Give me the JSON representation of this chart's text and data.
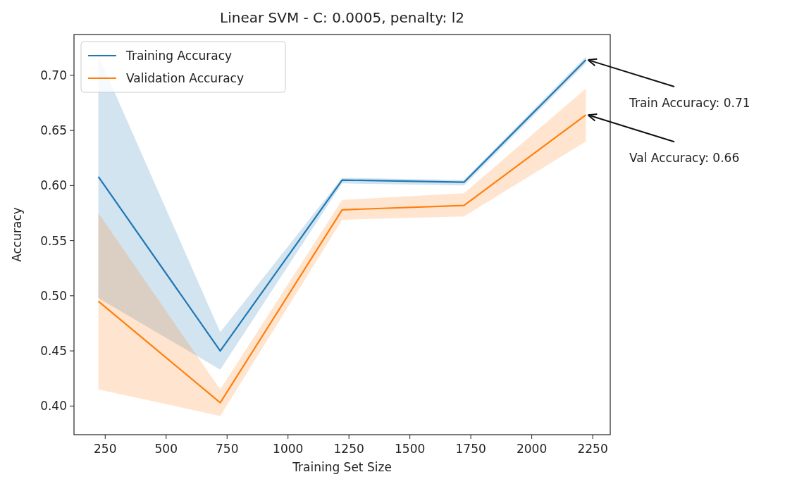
{
  "chart_data": {
    "type": "line",
    "title": "Linear SVM - C: 0.0005, penalty: l2",
    "xlabel": "Training Set Size",
    "ylabel": "Accuracy",
    "x": [
      222,
      722,
      1222,
      1722,
      2222
    ],
    "series": [
      {
        "name": "Training Accuracy",
        "color": "#1f77b4",
        "values": [
          0.608,
          0.45,
          0.605,
          0.603,
          0.714
        ],
        "lower": [
          0.498,
          0.433,
          0.602,
          0.6,
          0.711
        ],
        "upper": [
          0.718,
          0.467,
          0.607,
          0.605,
          0.717
        ]
      },
      {
        "name": "Validation Accuracy",
        "color": "#ff7f0e",
        "values": [
          0.495,
          0.403,
          0.578,
          0.582,
          0.664
        ],
        "lower": [
          0.415,
          0.391,
          0.569,
          0.572,
          0.64
        ],
        "upper": [
          0.575,
          0.415,
          0.587,
          0.593,
          0.688
        ]
      }
    ],
    "xlim": [
      122,
      2322
    ],
    "ylim": [
      0.374,
      0.737
    ],
    "xticks": [
      250,
      500,
      750,
      1000,
      1250,
      1500,
      1750,
      2000,
      2250
    ],
    "yticks": [
      {
        "value": 0.4,
        "label": "0.40"
      },
      {
        "value": 0.45,
        "label": "0.45"
      },
      {
        "value": 0.5,
        "label": "0.50"
      },
      {
        "value": 0.55,
        "label": "0.55"
      },
      {
        "value": 0.6,
        "label": "0.60"
      },
      {
        "value": 0.65,
        "label": "0.65"
      },
      {
        "value": 0.7,
        "label": "0.70"
      }
    ],
    "annotations": [
      {
        "text": "Train Accuracy: 0.71",
        "x": 2222,
        "y": 0.714
      },
      {
        "text": "Val Accuracy: 0.66",
        "x": 2222,
        "y": 0.664
      }
    ],
    "legend": "top left",
    "grid": false,
    "line_style": "solid",
    "marker": "none"
  }
}
